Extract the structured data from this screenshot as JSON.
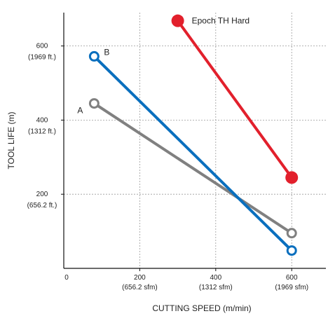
{
  "chart_data": {
    "type": "line",
    "xlabel": "CUTTING SPEED (m/min)",
    "ylabel": "TOOL LIFE (m)",
    "xlim": [
      0,
      690
    ],
    "ylim": [
      0,
      690
    ],
    "grid": true,
    "x_ticks": [
      {
        "value": 0,
        "label": "0",
        "sublabel": ""
      },
      {
        "value": 200,
        "label": "200",
        "sublabel": "(656.2 sfm)"
      },
      {
        "value": 400,
        "label": "400",
        "sublabel": "(1312 sfm)"
      },
      {
        "value": 600,
        "label": "600",
        "sublabel": "(1969 sfm)"
      }
    ],
    "y_ticks": [
      {
        "value": 200,
        "label": "200",
        "sublabel": "(656.2 ft.)"
      },
      {
        "value": 400,
        "label": "400",
        "sublabel": "(1312 ft.)"
      },
      {
        "value": 600,
        "label": "600",
        "sublabel": "(1969 ft.)"
      }
    ],
    "series": [
      {
        "name": "A",
        "color": "#808080",
        "marker": "open-circle",
        "points": [
          {
            "x": 80,
            "y": 445
          },
          {
            "x": 600,
            "y": 95
          }
        ]
      },
      {
        "name": "B",
        "color": "#0a6fbe",
        "marker": "open-circle",
        "points": [
          {
            "x": 80,
            "y": 572
          },
          {
            "x": 600,
            "y": 48
          }
        ]
      },
      {
        "name": "Epoch TH Hard",
        "color": "#e2202c",
        "marker": "filled-circle",
        "points": [
          {
            "x": 300,
            "y": 668
          },
          {
            "x": 600,
            "y": 245
          }
        ]
      }
    ]
  }
}
